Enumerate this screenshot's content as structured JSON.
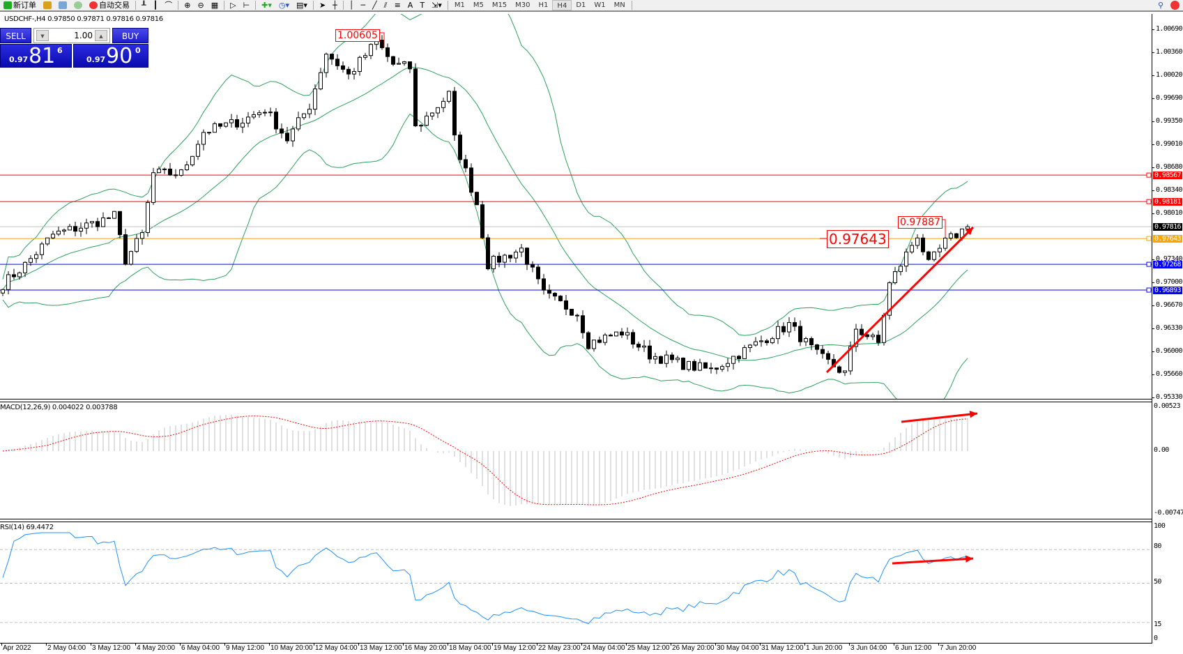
{
  "toolbar": {
    "new_order_label": "新订单",
    "auto_trading_label": "自动交易",
    "timeframes": [
      "M1",
      "M5",
      "M15",
      "M30",
      "H1",
      "H4",
      "D1",
      "W1",
      "MN"
    ],
    "active_timeframe": "H4",
    "tools": [
      "line-vertical-icon",
      "line-horizontal-icon",
      "trendline-icon",
      "fibonacci-icon",
      "fibo-levels-icon",
      "text-icon",
      "text-label-icon",
      "arrows-icon"
    ]
  },
  "chart": {
    "header": "USDCHF-,H4  0.97850 0.97871 0.97816 0.97816",
    "symbol": "USDCHF-",
    "timeframe": "H4",
    "ohlc": {
      "open": "0.97850",
      "high": "0.97871",
      "low": "0.97816",
      "close": "0.97816"
    }
  },
  "trade_panel": {
    "sell_label": "SELL",
    "buy_label": "BUY",
    "lot_size": "1.00",
    "sell_price": {
      "prefix": "0.97",
      "big": "81",
      "sup": "6"
    },
    "buy_price": {
      "prefix": "0.97",
      "big": "90",
      "sup": "0"
    }
  },
  "price_axis": {
    "ticks": [
      "1.00690",
      "1.00360",
      "1.00020",
      "0.99690",
      "0.99350",
      "0.99010",
      "0.98680",
      "0.98340",
      "0.98010",
      "0.97340",
      "0.97000",
      "0.96670",
      "0.96330",
      "0.96000",
      "0.95660",
      "0.95330"
    ],
    "range": [
      0.9533,
      1.0069
    ]
  },
  "horizontal_lines": [
    {
      "price": "0.98567",
      "color": "#ff0000"
    },
    {
      "price": "0.98181",
      "color": "#ff0000"
    },
    {
      "price": "0.97816",
      "color": "#000000",
      "line_color": "#c0c0c0"
    },
    {
      "price": "0.97643",
      "color": "#ffa500"
    },
    {
      "price": "0.97268",
      "color": "#0000ff"
    },
    {
      "price": "0.96893",
      "color": "#0000ff"
    }
  ],
  "annotations": {
    "high_label": "1.00605",
    "recent_high_label": "0.97887",
    "level_label": "0.97643"
  },
  "macd": {
    "title": "MACD(12,26,9) 0.004022 0.003788",
    "ticks": [
      "0.00523",
      "0.00",
      "-0.00747"
    ],
    "range": [
      -0.00747,
      0.00523
    ],
    "histogram_color": "#c0c0c0",
    "signal_color": "#ff0000"
  },
  "rsi": {
    "title": "RSI(14) 69.4472",
    "ticks": [
      "100",
      "80",
      "50",
      "15",
      "0"
    ],
    "levels": [
      80,
      50,
      15
    ],
    "line_color": "#1e90ff"
  },
  "time_axis": [
    "Apr 2022",
    "2 May 04:00",
    "3 May 12:00",
    "4 May 20:00",
    "6 May 04:00",
    "9 May 12:00",
    "10 May 20:00",
    "12 May 04:00",
    "13 May 12:00",
    "16 May 20:00",
    "18 May 04:00",
    "19 May 12:00",
    "22 May 23:00",
    "24 May 04:00",
    "25 May 12:00",
    "26 May 20:00",
    "30 May 04:00",
    "31 May 12:00",
    "1 Jun 20:00",
    "3 Jun 04:00",
    "6 Jun 12:00",
    "7 Jun 20:00"
  ],
  "chart_data": {
    "type": "candlestick",
    "bars_per_time_label": 8,
    "close_path": [
      [
        0,
        0.9698
      ],
      [
        4,
        0.9726
      ],
      [
        9,
        0.977
      ],
      [
        16,
        0.9786
      ],
      [
        20,
        0.9797
      ],
      [
        22,
        0.9733
      ],
      [
        25,
        0.977
      ],
      [
        27,
        0.9859
      ],
      [
        32,
        0.9859
      ],
      [
        36,
        0.992
      ],
      [
        43,
        0.9936
      ],
      [
        47,
        0.9953
      ],
      [
        51,
        0.9909
      ],
      [
        55,
        0.9958
      ],
      [
        58,
        1.0035
      ],
      [
        62,
        1.0002
      ],
      [
        67,
        1.0051
      ],
      [
        70,
        1.0018
      ],
      [
        73,
        1.0013
      ],
      [
        74,
        0.9925
      ],
      [
        80,
        0.9974
      ],
      [
        81,
        0.9909
      ],
      [
        85,
        0.9815
      ],
      [
        87,
        0.9727
      ],
      [
        93,
        0.9749
      ],
      [
        97,
        0.9683
      ],
      [
        103,
        0.9656
      ],
      [
        105,
        0.9612
      ],
      [
        111,
        0.9628
      ],
      [
        116,
        0.9595
      ],
      [
        123,
        0.9579
      ],
      [
        127,
        0.9573
      ],
      [
        134,
        0.9606
      ],
      [
        141,
        0.9639
      ],
      [
        146,
        0.9595
      ],
      [
        151,
        0.9568
      ],
      [
        153,
        0.9634
      ],
      [
        157,
        0.9612
      ],
      [
        159,
        0.9698
      ],
      [
        164,
        0.977
      ],
      [
        166,
        0.9726
      ],
      [
        169,
        0.9759
      ],
      [
        172,
        0.9776
      ],
      [
        173,
        0.97816
      ]
    ],
    "indicators": [
      "Bollinger Bands (20, 2)",
      "MACD(12,26,9)",
      "RSI(14)"
    ],
    "band_color": "#2ca05a"
  }
}
